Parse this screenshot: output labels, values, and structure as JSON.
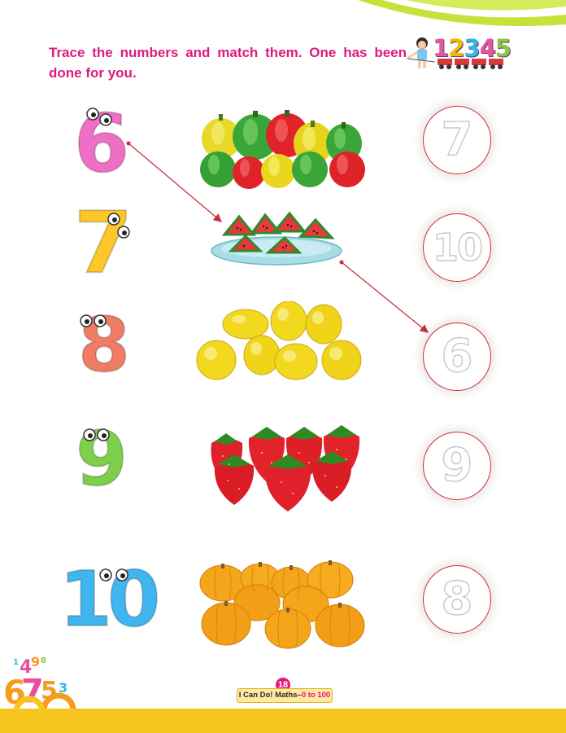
{
  "instruction": "Trace the numbers and match them. One has been done for you.",
  "header_digits": [
    "1",
    "2",
    "3",
    "4",
    "5"
  ],
  "rows": [
    {
      "number": "6",
      "number_color": "#f06fc6",
      "fruit": "bell-peppers",
      "trace_digit": "7"
    },
    {
      "number": "7",
      "number_color": "#ffc629",
      "fruit": "watermelon-slices",
      "trace_digit": "10"
    },
    {
      "number": "8",
      "number_color": "#f07c66",
      "fruit": "lemons",
      "trace_digit": "6"
    },
    {
      "number": "9",
      "number_color": "#7ed04a",
      "fruit": "strawberries",
      "trace_digit": "9"
    },
    {
      "number": "10",
      "number_color": "#3fb6f0",
      "fruit": "pumpkins",
      "trace_digit": "8"
    }
  ],
  "footer": {
    "page_number": "18",
    "book_title": "I Can Do! Maths–",
    "book_range": "0 to 100"
  },
  "colors": {
    "instruction": "#e0197d",
    "match_line": "#c8323c",
    "trace_circle": "#d62d2d",
    "footer_bar": "#f7c51f"
  }
}
